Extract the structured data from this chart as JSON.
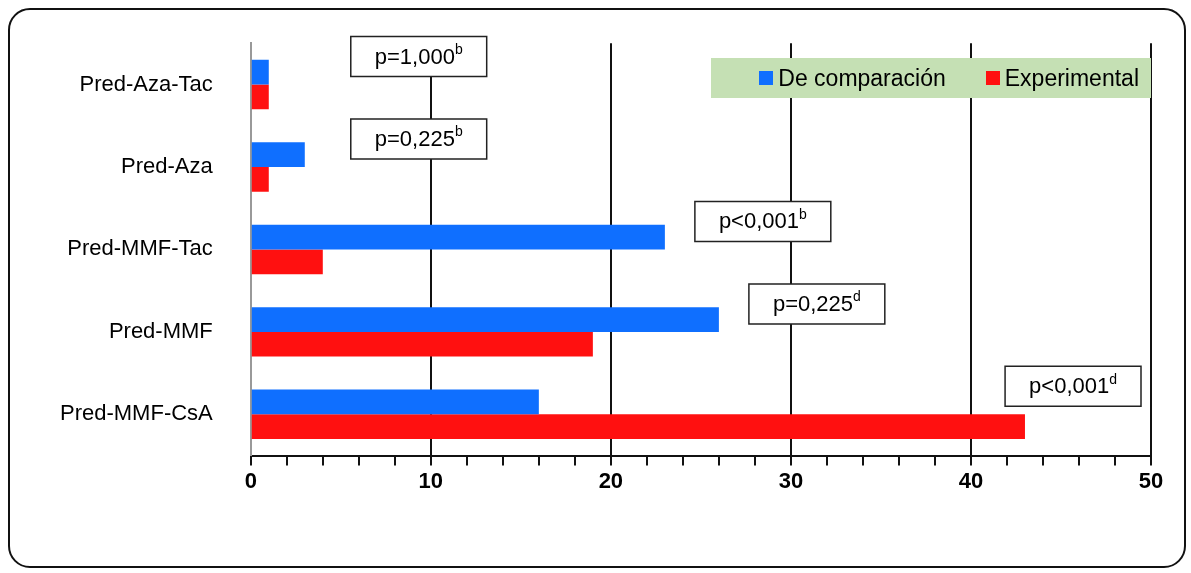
{
  "chart_data": {
    "type": "bar",
    "orientation": "horizontal",
    "categories": [
      "Pred-Aza-Tac",
      "Pred-Aza",
      "Pred-MMF-Tac",
      "Pred-MMF",
      "Pred-MMF-CsA"
    ],
    "series": [
      {
        "name": "De comparación",
        "color": "#0f6fff",
        "values": [
          1,
          3,
          23,
          26,
          16
        ]
      },
      {
        "name": "Experimental",
        "color": "#ff1010",
        "values": [
          1,
          1,
          4,
          19,
          43
        ]
      }
    ],
    "xlim": [
      0,
      50
    ],
    "xticks": [
      0,
      {
        "value": 2,
        "label": null
      },
      {
        "value": 4,
        "label": null
      },
      {
        "value": 6,
        "label": null
      },
      {
        "value": 8,
        "label": null
      },
      10,
      {
        "value": 12,
        "label": null
      },
      {
        "value": 14,
        "label": null
      },
      {
        "value": 16,
        "label": null
      },
      {
        "value": 18,
        "label": null
      },
      20,
      {
        "value": 22,
        "label": null
      },
      {
        "value": 24,
        "label": null
      },
      {
        "value": 26,
        "label": null
      },
      {
        "value": 28,
        "label": null
      },
      30,
      {
        "value": 32,
        "label": null
      },
      {
        "value": 34,
        "label": null
      },
      {
        "value": 36,
        "label": null
      },
      {
        "value": 38,
        "label": null
      },
      40,
      {
        "value": 42,
        "label": null
      },
      {
        "value": 44,
        "label": null
      },
      {
        "value": 46,
        "label": null
      },
      {
        "value": 48,
        "label": null
      },
      50
    ],
    "grid": "x",
    "legend": "top right",
    "annotations": [
      "p=1,000$^{b}$",
      "p=0,225$^{b}$",
      "p<0,001$^{b}$",
      "p=0,225$^{d}$",
      "p<0,001$^{d}$"
    ]
  }
}
